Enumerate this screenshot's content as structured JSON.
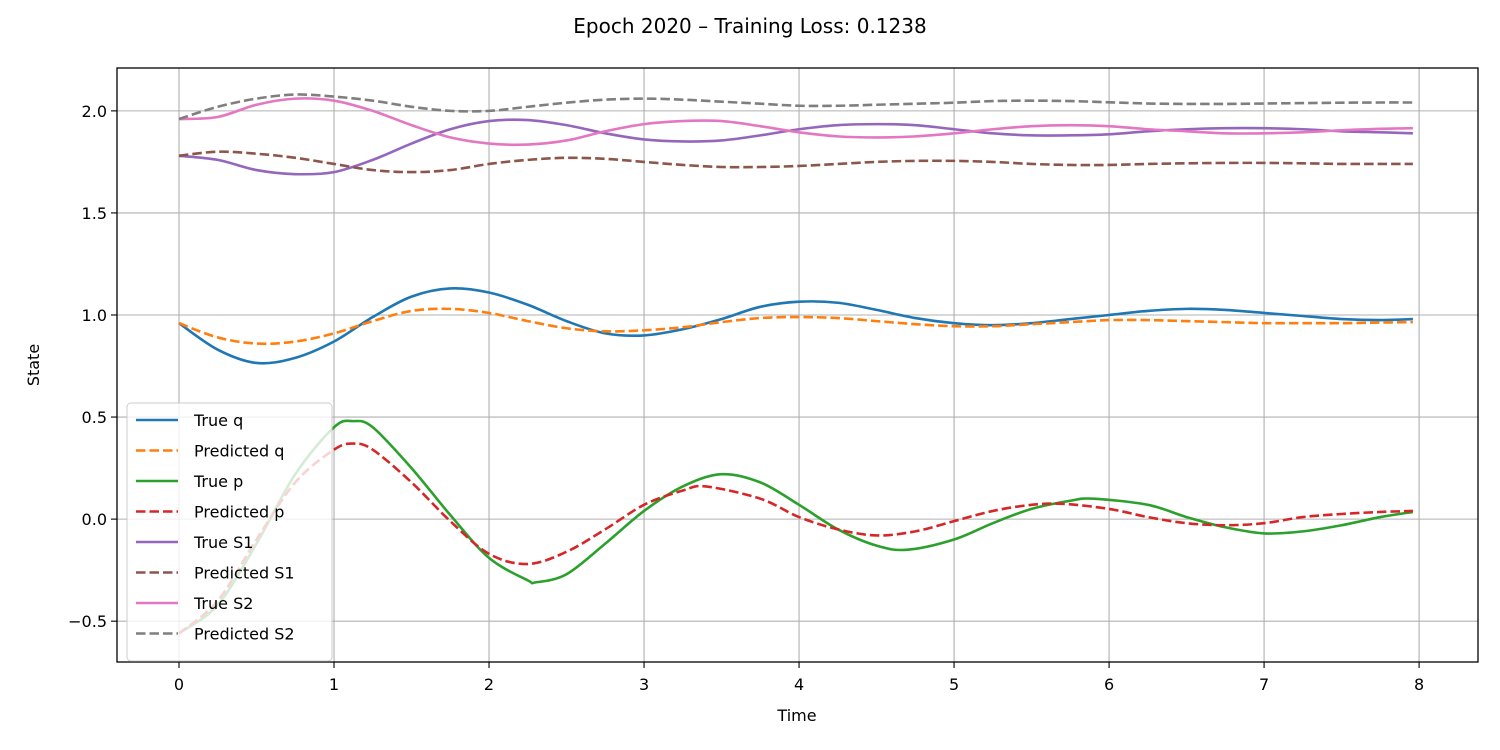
{
  "chart_data": {
    "type": "line",
    "title": "Epoch 2020 – Training Loss: 0.1238",
    "xlabel": "Time",
    "ylabel": "State",
    "xlim": [
      -0.4,
      8.38
    ],
    "ylim": [
      -0.7,
      2.21
    ],
    "xticks": [
      0,
      1,
      2,
      3,
      4,
      5,
      6,
      7,
      8
    ],
    "xtick_labels": [
      "0",
      "1",
      "2",
      "3",
      "4",
      "5",
      "6",
      "7",
      "8"
    ],
    "yticks": [
      -0.5,
      0.0,
      0.5,
      1.0,
      1.5,
      2.0
    ],
    "ytick_labels": [
      "−0.5",
      "0.0",
      "0.5",
      "1.0",
      "1.5",
      "2.0"
    ],
    "grid": true,
    "legend_position": "lower-left",
    "series": [
      {
        "name": "True q",
        "color": "#1f77b4",
        "dash": "solid",
        "x": [
          0,
          0.25,
          0.5,
          0.75,
          1.0,
          1.25,
          1.5,
          1.75,
          2.0,
          2.25,
          2.5,
          2.75,
          3.0,
          3.25,
          3.5,
          3.75,
          4.0,
          4.25,
          4.5,
          4.75,
          5.0,
          5.25,
          5.5,
          5.75,
          6.0,
          6.25,
          6.5,
          6.75,
          7.0,
          7.25,
          7.5,
          7.75,
          7.96
        ],
        "y": [
          0.96,
          0.83,
          0.765,
          0.79,
          0.87,
          0.99,
          1.09,
          1.13,
          1.11,
          1.05,
          0.97,
          0.91,
          0.9,
          0.93,
          0.98,
          1.04,
          1.065,
          1.06,
          1.025,
          0.985,
          0.96,
          0.95,
          0.96,
          0.98,
          1.0,
          1.02,
          1.03,
          1.025,
          1.01,
          0.995,
          0.98,
          0.975,
          0.98
        ]
      },
      {
        "name": "Predicted q",
        "color": "#ff7f0e",
        "dash": "dashed",
        "x": [
          0,
          0.25,
          0.5,
          0.75,
          1.0,
          1.25,
          1.5,
          1.75,
          2.0,
          2.25,
          2.5,
          2.75,
          3.0,
          3.25,
          3.5,
          3.75,
          4.0,
          4.25,
          4.5,
          4.75,
          5.0,
          5.25,
          5.5,
          5.75,
          6.0,
          6.25,
          6.5,
          6.75,
          7.0,
          7.25,
          7.5,
          7.75,
          7.96
        ],
        "y": [
          0.96,
          0.89,
          0.86,
          0.87,
          0.91,
          0.97,
          1.02,
          1.03,
          1.01,
          0.97,
          0.935,
          0.92,
          0.925,
          0.94,
          0.965,
          0.985,
          0.99,
          0.985,
          0.97,
          0.955,
          0.945,
          0.945,
          0.955,
          0.965,
          0.975,
          0.975,
          0.97,
          0.965,
          0.96,
          0.96,
          0.96,
          0.963,
          0.965
        ]
      },
      {
        "name": "True p",
        "color": "#2ca02c",
        "dash": "solid",
        "x": [
          0,
          0.25,
          0.5,
          0.75,
          1.0,
          1.125,
          1.25,
          1.5,
          1.75,
          2.0,
          2.25,
          2.3,
          2.5,
          2.75,
          3.0,
          3.25,
          3.5,
          3.75,
          4.0,
          4.25,
          4.5,
          4.7,
          5.0,
          5.25,
          5.5,
          5.75,
          5.9,
          6.25,
          6.5,
          6.75,
          7.0,
          7.25,
          7.5,
          7.75,
          7.96
        ],
        "y": [
          -0.56,
          -0.42,
          -0.12,
          0.22,
          0.45,
          0.48,
          0.45,
          0.25,
          0.02,
          -0.19,
          -0.3,
          -0.31,
          -0.27,
          -0.12,
          0.04,
          0.16,
          0.22,
          0.18,
          0.07,
          -0.05,
          -0.13,
          -0.15,
          -0.1,
          -0.02,
          0.05,
          0.09,
          0.1,
          0.07,
          0.01,
          -0.04,
          -0.07,
          -0.06,
          -0.03,
          0.01,
          0.035
        ]
      },
      {
        "name": "Predicted p",
        "color": "#d62728",
        "dash": "dashed",
        "x": [
          0,
          0.25,
          0.5,
          0.75,
          1.0,
          1.125,
          1.25,
          1.5,
          1.75,
          2.0,
          2.25,
          2.5,
          2.75,
          3.0,
          3.25,
          3.4,
          3.75,
          4.0,
          4.25,
          4.5,
          4.75,
          5.0,
          5.25,
          5.5,
          5.7,
          6.0,
          6.25,
          6.5,
          6.75,
          7.0,
          7.25,
          7.5,
          7.75,
          7.96
        ],
        "y": [
          -0.56,
          -0.4,
          -0.1,
          0.18,
          0.34,
          0.37,
          0.34,
          0.18,
          -0.01,
          -0.17,
          -0.22,
          -0.16,
          -0.05,
          0.07,
          0.14,
          0.16,
          0.1,
          0.01,
          -0.05,
          -0.08,
          -0.06,
          -0.01,
          0.04,
          0.07,
          0.075,
          0.05,
          0.01,
          -0.02,
          -0.03,
          -0.02,
          0.01,
          0.025,
          0.035,
          0.04
        ]
      },
      {
        "name": "True S1",
        "color": "#9467bd",
        "dash": "solid",
        "x": [
          0,
          0.25,
          0.5,
          0.75,
          1.0,
          1.25,
          1.5,
          1.75,
          2.0,
          2.25,
          2.5,
          2.75,
          3.0,
          3.25,
          3.5,
          3.75,
          4.0,
          4.25,
          4.5,
          4.75,
          5.0,
          5.25,
          5.5,
          5.75,
          6.0,
          6.25,
          6.5,
          6.75,
          7.0,
          7.25,
          7.5,
          7.75,
          7.96
        ],
        "y": [
          1.78,
          1.76,
          1.71,
          1.69,
          1.7,
          1.76,
          1.84,
          1.91,
          1.95,
          1.955,
          1.93,
          1.89,
          1.86,
          1.85,
          1.855,
          1.88,
          1.91,
          1.93,
          1.935,
          1.93,
          1.91,
          1.89,
          1.88,
          1.88,
          1.885,
          1.9,
          1.91,
          1.915,
          1.915,
          1.91,
          1.9,
          1.895,
          1.89
        ]
      },
      {
        "name": "Predicted S1",
        "color": "#8c564b",
        "dash": "dashed",
        "x": [
          0,
          0.25,
          0.5,
          0.75,
          1.0,
          1.25,
          1.5,
          1.75,
          2.0,
          2.25,
          2.5,
          2.75,
          3.0,
          3.25,
          3.5,
          3.75,
          4.0,
          4.25,
          4.5,
          4.75,
          5.0,
          5.25,
          5.5,
          5.75,
          6.0,
          6.25,
          6.5,
          6.75,
          7.0,
          7.25,
          7.5,
          7.75,
          7.96
        ],
        "y": [
          1.78,
          1.8,
          1.79,
          1.77,
          1.74,
          1.71,
          1.7,
          1.71,
          1.74,
          1.76,
          1.77,
          1.765,
          1.75,
          1.735,
          1.725,
          1.725,
          1.73,
          1.74,
          1.75,
          1.755,
          1.755,
          1.75,
          1.74,
          1.735,
          1.735,
          1.74,
          1.743,
          1.745,
          1.745,
          1.743,
          1.74,
          1.74,
          1.74
        ]
      },
      {
        "name": "True S2",
        "color": "#e377c2",
        "dash": "solid",
        "x": [
          0,
          0.25,
          0.5,
          0.75,
          1.0,
          1.25,
          1.5,
          1.75,
          2.0,
          2.25,
          2.5,
          2.75,
          3.0,
          3.25,
          3.5,
          3.75,
          4.0,
          4.25,
          4.5,
          4.75,
          5.0,
          5.25,
          5.5,
          5.75,
          6.0,
          6.25,
          6.5,
          6.75,
          7.0,
          7.25,
          7.5,
          7.75,
          7.96
        ],
        "y": [
          1.96,
          1.97,
          2.03,
          2.06,
          2.05,
          2.0,
          1.93,
          1.87,
          1.84,
          1.835,
          1.855,
          1.9,
          1.935,
          1.95,
          1.95,
          1.925,
          1.895,
          1.875,
          1.87,
          1.875,
          1.89,
          1.91,
          1.925,
          1.93,
          1.925,
          1.91,
          1.9,
          1.89,
          1.89,
          1.895,
          1.905,
          1.912,
          1.915
        ]
      },
      {
        "name": "Predicted S2",
        "color": "#7f7f7f",
        "dash": "dashed",
        "x": [
          0,
          0.25,
          0.5,
          0.75,
          1.0,
          1.25,
          1.5,
          1.75,
          2.0,
          2.25,
          2.5,
          2.75,
          3.0,
          3.25,
          3.5,
          3.75,
          4.0,
          4.25,
          4.5,
          4.75,
          5.0,
          5.25,
          5.5,
          5.75,
          6.0,
          6.25,
          6.5,
          6.75,
          7.0,
          7.25,
          7.5,
          7.75,
          7.96
        ],
        "y": [
          1.96,
          2.02,
          2.06,
          2.08,
          2.07,
          2.05,
          2.02,
          2.0,
          2.0,
          2.02,
          2.04,
          2.055,
          2.06,
          2.055,
          2.045,
          2.035,
          2.025,
          2.025,
          2.03,
          2.035,
          2.04,
          2.048,
          2.05,
          2.048,
          2.042,
          2.036,
          2.034,
          2.034,
          2.036,
          2.038,
          2.04,
          2.041,
          2.041
        ]
      }
    ]
  }
}
